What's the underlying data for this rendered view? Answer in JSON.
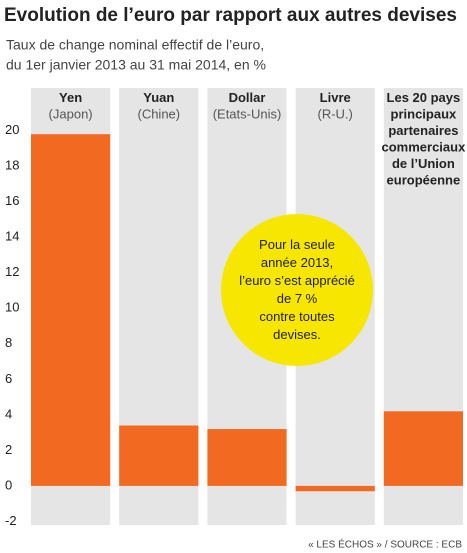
{
  "chart_data": {
    "type": "bar",
    "title": "Evolution de l’euro par rapport aux autres devises",
    "subtitle": [
      "Taux de change nominal effectif de l’euro,",
      "du 1er janvier 2013 au 31 mai 2014, en %"
    ],
    "categories": [
      "Yen",
      "Yuan",
      "Dollar",
      "Livre",
      "Les 20 pays\nprincipaux\npartenaires\ncommerciaux\nde l’Union\neuropéenne"
    ],
    "category_notes": [
      "(Japon)",
      "(Chine)",
      "(Etats-Unis)",
      "(R-U.)",
      null
    ],
    "values": [
      19.8,
      3.4,
      3.2,
      -0.3,
      4.2
    ],
    "color": "#f26a22",
    "column_color": "#e5e5e5",
    "ylim": [
      -2.2,
      22.4
    ],
    "yticks": [
      -2,
      0,
      2,
      4,
      6,
      8,
      10,
      12,
      14,
      16,
      18,
      20
    ],
    "grid": false,
    "annotation": "Pour la seule\nannée 2013,\nl’euro s’est apprécié\nde 7 %\ncontre toutes\ndevises.",
    "annotation_color": "#f7e600",
    "source": "« LES ÉCHOS » / SOURCE : ECB"
  }
}
